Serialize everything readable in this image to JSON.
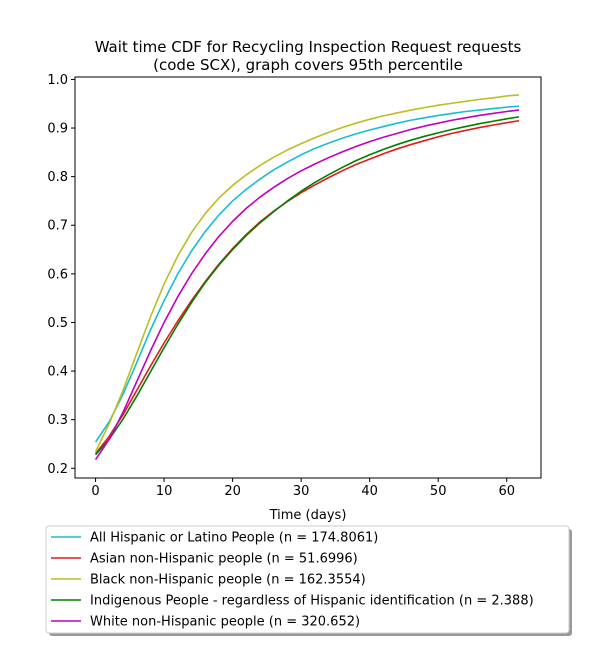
{
  "chart_data": {
    "type": "line",
    "title_line1": "Wait time CDF for Recycling Inspection Request  requests",
    "title_line2": "(code SCX), graph covers 95th percentile",
    "xlabel": "Time (days)",
    "ylabel": "",
    "xlim": [
      -3,
      65
    ],
    "ylim": [
      0.18,
      1.005
    ],
    "x_ticks": [
      0,
      10,
      20,
      30,
      40,
      50,
      60
    ],
    "y_ticks": [
      0.2,
      0.3,
      0.4,
      0.5,
      0.6,
      0.7,
      0.8,
      0.9,
      1.0
    ],
    "x_tick_labels": [
      "0",
      "10",
      "20",
      "30",
      "40",
      "50",
      "60"
    ],
    "y_tick_labels": [
      "0.2",
      "0.3",
      "0.4",
      "0.5",
      "0.6",
      "0.7",
      "0.8",
      "0.9",
      "1.0"
    ],
    "grid": false,
    "legend_position": "bottom",
    "x": [
      0,
      2,
      4,
      6,
      8,
      10,
      12,
      14,
      16,
      18,
      20,
      22,
      24,
      26,
      28,
      30,
      32,
      34,
      36,
      38,
      40,
      42,
      44,
      46,
      48,
      50,
      52,
      54,
      56,
      58,
      60,
      61.8
    ],
    "series": [
      {
        "name": "All Hispanic or Latino People (n = 174.8061)",
        "color": "#17becf",
        "values": [
          0.254,
          0.296,
          0.352,
          0.417,
          0.484,
          0.545,
          0.6,
          0.647,
          0.687,
          0.721,
          0.75,
          0.774,
          0.795,
          0.814,
          0.83,
          0.845,
          0.858,
          0.869,
          0.879,
          0.888,
          0.896,
          0.903,
          0.91,
          0.916,
          0.921,
          0.926,
          0.93,
          0.934,
          0.937,
          0.94,
          0.943,
          0.945
        ]
      },
      {
        "name": "Asian non-Hispanic people (n = 51.6996)",
        "color": "#e41a1c",
        "values": [
          0.23,
          0.266,
          0.31,
          0.36,
          0.41,
          0.458,
          0.503,
          0.545,
          0.584,
          0.62,
          0.652,
          0.681,
          0.707,
          0.729,
          0.749,
          0.767,
          0.783,
          0.798,
          0.812,
          0.825,
          0.836,
          0.847,
          0.857,
          0.866,
          0.874,
          0.882,
          0.889,
          0.895,
          0.901,
          0.906,
          0.911,
          0.915
        ]
      },
      {
        "name": "Black non-Hispanic people (n = 162.3554)",
        "color": "#bcbd22",
        "values": [
          0.234,
          0.292,
          0.36,
          0.436,
          0.511,
          0.579,
          0.637,
          0.685,
          0.724,
          0.756,
          0.782,
          0.804,
          0.823,
          0.84,
          0.855,
          0.868,
          0.88,
          0.891,
          0.901,
          0.91,
          0.918,
          0.925,
          0.931,
          0.937,
          0.942,
          0.947,
          0.951,
          0.955,
          0.959,
          0.962,
          0.966,
          0.968
        ]
      },
      {
        "name": "Indigenous People - regardless of Hispanic identification (n = 2.388)",
        "color": "#008000",
        "values": [
          0.228,
          0.26,
          0.301,
          0.348,
          0.398,
          0.448,
          0.496,
          0.541,
          0.582,
          0.618,
          0.65,
          0.679,
          0.705,
          0.728,
          0.75,
          0.77,
          0.788,
          0.804,
          0.819,
          0.833,
          0.845,
          0.856,
          0.866,
          0.875,
          0.883,
          0.89,
          0.897,
          0.903,
          0.909,
          0.914,
          0.919,
          0.923
        ]
      },
      {
        "name": "White non-Hispanic people (n = 320.652)",
        "color": "#c000c0",
        "values": [
          0.218,
          0.26,
          0.315,
          0.378,
          0.441,
          0.5,
          0.553,
          0.6,
          0.641,
          0.677,
          0.708,
          0.735,
          0.758,
          0.778,
          0.796,
          0.812,
          0.826,
          0.839,
          0.851,
          0.862,
          0.872,
          0.881,
          0.889,
          0.897,
          0.904,
          0.91,
          0.916,
          0.921,
          0.926,
          0.93,
          0.934,
          0.937
        ]
      }
    ]
  }
}
